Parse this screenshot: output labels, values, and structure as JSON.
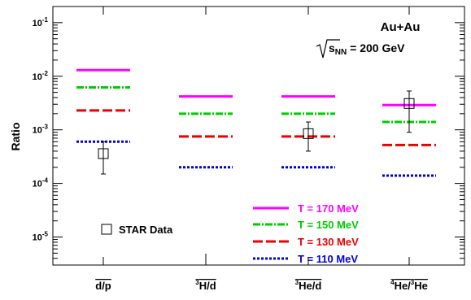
{
  "chart_data": {
    "type": "scatter",
    "ylabel": "Ratio",
    "yscale": "log",
    "ylim": [
      3e-06,
      0.2
    ],
    "yticks": [
      {
        "value": 0.1,
        "base": "10",
        "exp": "-1"
      },
      {
        "value": 0.01,
        "base": "10",
        "exp": "-2"
      },
      {
        "value": 0.001,
        "base": "10",
        "exp": "-3"
      },
      {
        "value": 0.0001,
        "base": "10",
        "exp": "-4"
      },
      {
        "value": 1e-05,
        "base": "10",
        "exp": "-5"
      }
    ],
    "categories": [
      {
        "label": "d/p",
        "overline": true
      },
      {
        "label": "H/d",
        "pre_sup": "3",
        "overline": true
      },
      {
        "label": "He/d",
        "pre_sup": "3",
        "overline": true
      },
      {
        "label": "He/He",
        "overline": true,
        "num_sup": "4",
        "den_sup": "3"
      }
    ],
    "annotation": {
      "system": "Au+Au",
      "energy_label": "s",
      "energy_sub": "NN",
      "energy_value": " = 200 GeV"
    },
    "model_series": [
      {
        "name": "T = 170 MeV",
        "color": "#ff00ff",
        "dash": "solid",
        "values": [
          0.013,
          0.0042,
          0.0042,
          0.0029
        ]
      },
      {
        "name": "T = 150 MeV",
        "color": "#00cc00",
        "dash": "dashdot",
        "values": [
          0.0062,
          0.002,
          0.002,
          0.0014
        ]
      },
      {
        "name": "T = 130 MeV",
        "color": "#ee0000",
        "dash": "dash",
        "values": [
          0.0023,
          0.00075,
          0.00075,
          0.00052
        ]
      },
      {
        "name": "T = 110 MeV",
        "color": "#0000dd",
        "dash": "dot",
        "values": [
          0.0006,
          0.0002,
          0.0002,
          0.00014
        ]
      }
    ],
    "data_series": {
      "name": "STAR Data",
      "points": [
        {
          "category": 0,
          "value": 0.00036,
          "err_low": 0.00015,
          "err_high": 0.0006
        },
        {
          "category": 2,
          "value": 0.00085,
          "err_low": 0.0004,
          "err_high": 0.0014
        },
        {
          "category": 3,
          "value": 0.0031,
          "err_low": 0.0009,
          "err_high": 0.0053
        }
      ],
      "offscale_marker_category": 1
    },
    "legend": {
      "position": "bottom-right"
    },
    "grid": false
  }
}
